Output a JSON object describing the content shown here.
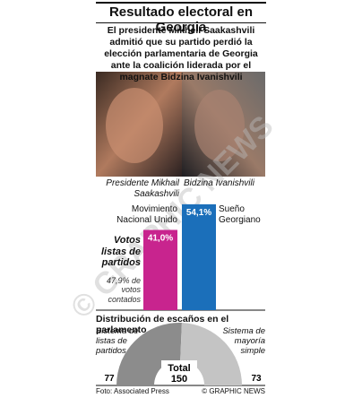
{
  "title": "Resultado electoral en Georgia",
  "subtitle": "El presidente Mikheil Saakashvili admitió que su partido perdió la elección parlamentaria de Georgia ante la coalición liderada por el magnate Bidzina Ivanishvili",
  "photo_captions": [
    "Presidente Mikhail Saakashvili",
    "Bidzina Ivanishvili"
  ],
  "chart_data": [
    {
      "type": "bar",
      "title": "Votos listas de partidos",
      "annotation": "47,9% de votos contados",
      "categories": [
        "Movimiento Nacional Unido",
        "Sueño Georgiano"
      ],
      "values": [
        41.0,
        54.1
      ],
      "value_labels": [
        "41,0%",
        "54,1%"
      ],
      "colors": [
        "#c8248e",
        "#1b6fba"
      ],
      "ylim": [
        0,
        60
      ]
    },
    {
      "type": "half-donut",
      "title": "Distribución de escaños en el parlamento",
      "categories": [
        "Sistema de listas de partidos",
        "Sistema de mayoría simple"
      ],
      "values": [
        77,
        73
      ],
      "colors": [
        "#8c8c8c",
        "#c4c4c4"
      ],
      "total_label": "Total",
      "total": 150
    }
  ],
  "source": "Foto: Associated Press",
  "credit": "© GRAPHIC NEWS"
}
